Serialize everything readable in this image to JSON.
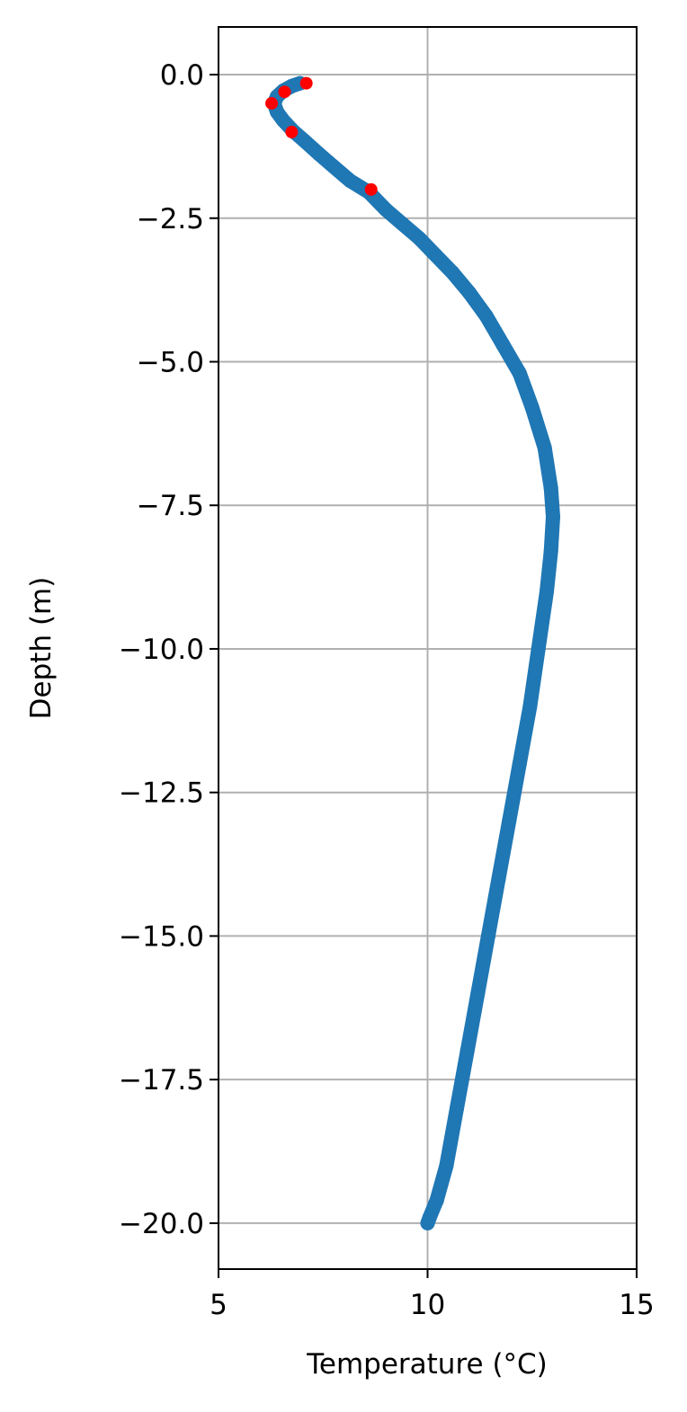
{
  "chart_data": {
    "type": "scatter",
    "title": "",
    "xlabel": "Temperature (°C)",
    "ylabel": "Depth (m)",
    "xlim": [
      5,
      15
    ],
    "ylim": [
      -20.8,
      0.83
    ],
    "xticks": [
      5,
      10,
      15
    ],
    "xtick_labels": [
      "5",
      "10",
      "15"
    ],
    "yticks": [
      0.0,
      -2.5,
      -5.0,
      -7.5,
      -10.0,
      -12.5,
      -15.0,
      -17.5,
      -20.0
    ],
    "ytick_labels": [
      "0.0",
      "−2.5",
      "−5.0",
      "−7.5",
      "−10.0",
      "−12.5",
      "−15.0",
      "−17.5",
      "−20.0"
    ],
    "grid": true,
    "legend": "none",
    "series": [
      {
        "color": "#1f77b4",
        "style": "dense-markers",
        "points": [
          [
            6.95,
            -0.15
          ],
          [
            6.75,
            -0.2
          ],
          [
            6.55,
            -0.28
          ],
          [
            6.4,
            -0.38
          ],
          [
            6.33,
            -0.5
          ],
          [
            6.4,
            -0.65
          ],
          [
            6.55,
            -0.8
          ],
          [
            6.78,
            -0.98
          ],
          [
            7.05,
            -1.15
          ],
          [
            7.4,
            -1.38
          ],
          [
            7.75,
            -1.6
          ],
          [
            8.15,
            -1.85
          ],
          [
            8.6,
            -2.05
          ],
          [
            9.0,
            -2.35
          ],
          [
            9.4,
            -2.6
          ],
          [
            9.8,
            -2.85
          ],
          [
            10.2,
            -3.15
          ],
          [
            10.6,
            -3.45
          ],
          [
            11.0,
            -3.8
          ],
          [
            11.4,
            -4.2
          ],
          [
            11.8,
            -4.7
          ],
          [
            12.2,
            -5.2
          ],
          [
            12.5,
            -5.8
          ],
          [
            12.8,
            -6.5
          ],
          [
            12.95,
            -7.2
          ],
          [
            13.0,
            -7.7
          ],
          [
            12.95,
            -8.3
          ],
          [
            12.85,
            -9.0
          ],
          [
            12.65,
            -10.0
          ],
          [
            12.45,
            -11.0
          ],
          [
            12.2,
            -12.0
          ],
          [
            11.95,
            -13.0
          ],
          [
            11.7,
            -14.0
          ],
          [
            11.45,
            -15.0
          ],
          [
            11.2,
            -16.0
          ],
          [
            10.95,
            -17.0
          ],
          [
            10.7,
            -18.0
          ],
          [
            10.45,
            -19.0
          ],
          [
            10.22,
            -19.6
          ],
          [
            10.05,
            -19.9
          ],
          [
            10.0,
            -20.0
          ]
        ]
      },
      {
        "color": "#ff0000",
        "style": "markers",
        "points": [
          [
            7.1,
            -0.15
          ],
          [
            6.58,
            -0.3
          ],
          [
            6.27,
            -0.5
          ],
          [
            6.75,
            -1.0
          ],
          [
            8.65,
            -2.0
          ]
        ]
      }
    ]
  }
}
